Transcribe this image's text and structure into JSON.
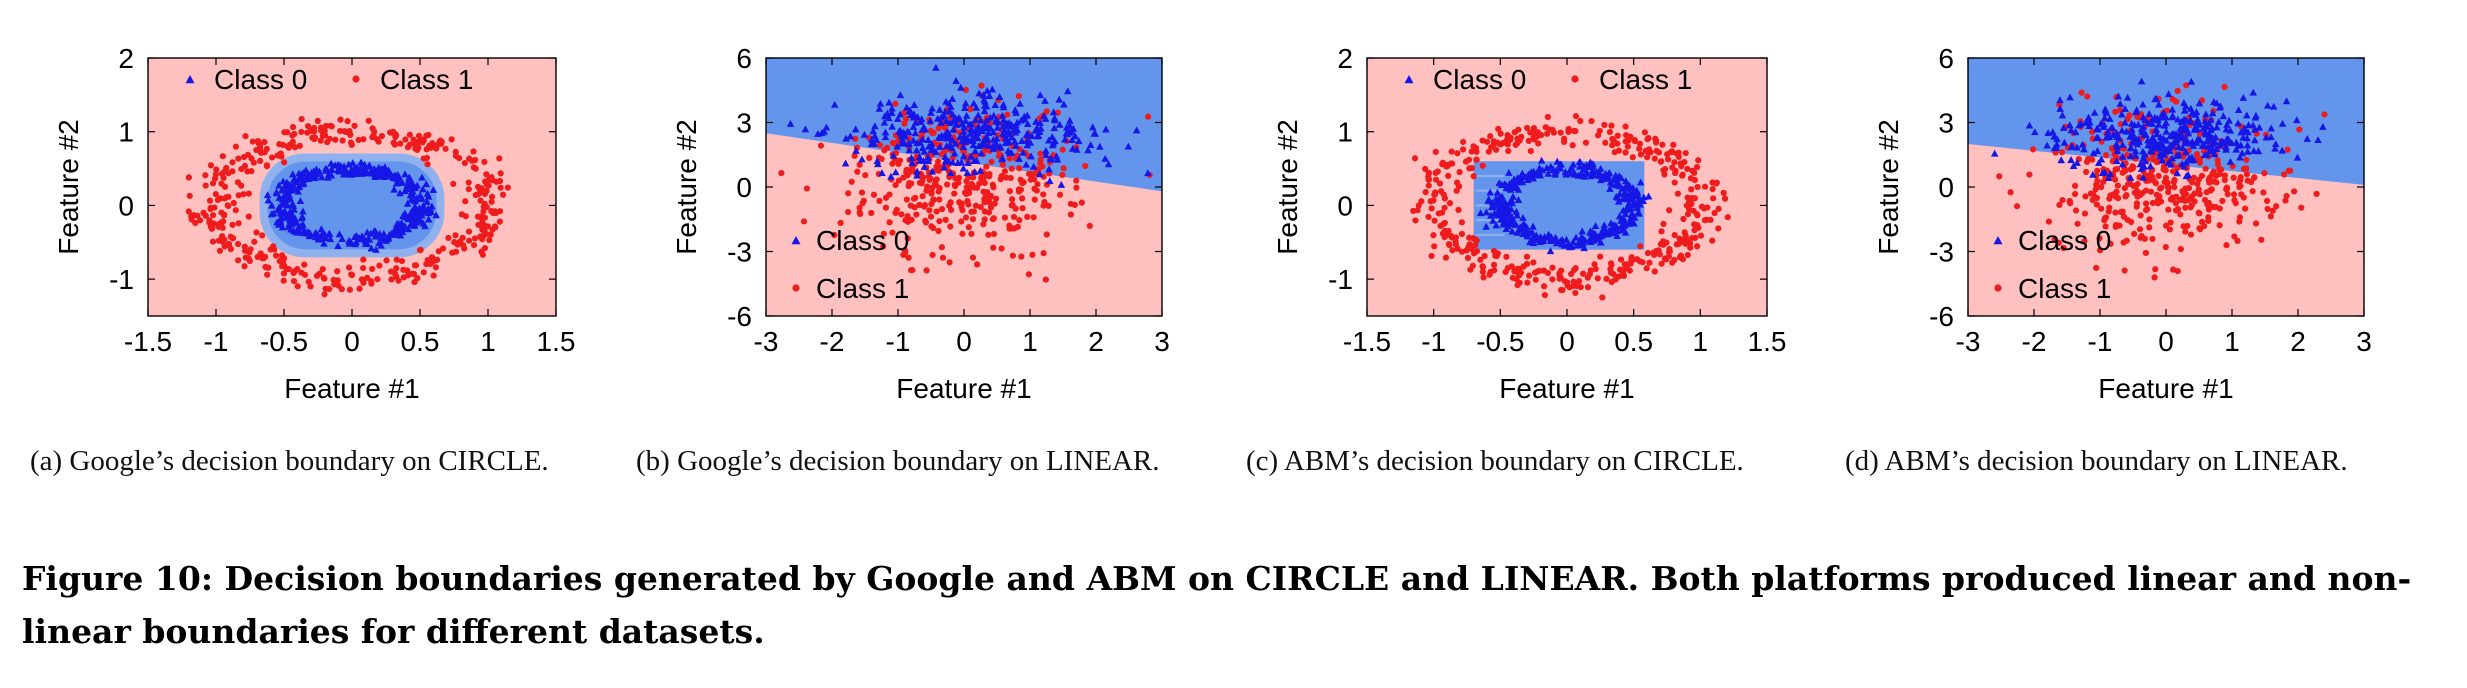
{
  "colors": {
    "class0": "#1616e6",
    "class1": "#ee1c1c",
    "region0": "#6495ed",
    "region1": "#ffc0c0",
    "boundary_soft": "#8fb1ee"
  },
  "chart_data": [
    {
      "type": "scatter",
      "id": "a",
      "dataset": "CIRCLE",
      "title": "",
      "xlabel": "Feature #1",
      "ylabel": "Feature #2",
      "xlim": [
        -1.5,
        1.5
      ],
      "ylim": [
        -1.5,
        2
      ],
      "xticks": [
        "-1.5",
        "-1",
        "-0.5",
        "0",
        "0.5",
        "1",
        "1.5"
      ],
      "yticks": [
        "2",
        "1",
        "0",
        "-1"
      ],
      "legend": {
        "placement": "top",
        "entries": [
          "Class 0",
          "Class 1"
        ]
      },
      "background": "class1",
      "boundary": {
        "shape": "rounded-ellipse",
        "x": [
          -0.65,
          0.65
        ],
        "y": [
          -0.65,
          0.65
        ],
        "class": 0
      },
      "series": [
        {
          "name": "Class 0",
          "marker": "triangle",
          "pattern": "ring",
          "cx": 0,
          "cy": 0,
          "rx": 0.5,
          "ry": 0.5,
          "spread": 0.1,
          "n": 380
        },
        {
          "name": "Class 1",
          "marker": "circle",
          "pattern": "ring",
          "cx": 0,
          "cy": 0,
          "rx": 1.0,
          "ry": 1.0,
          "spread": 0.1,
          "n": 420
        }
      ]
    },
    {
      "type": "scatter",
      "id": "b",
      "dataset": "LINEAR",
      "title": "",
      "xlabel": "Feature #1",
      "ylabel": "Feature #2",
      "xlim": [
        -3,
        3
      ],
      "ylim": [
        -6,
        6
      ],
      "xticks": [
        "-3",
        "-2",
        "-1",
        "0",
        "1",
        "2",
        "3"
      ],
      "yticks": [
        "6",
        "3",
        "0",
        "-3",
        "-6"
      ],
      "legend": {
        "placement": "bottom-left",
        "entries": [
          "Class 0",
          "Class 1"
        ]
      },
      "background": "class1",
      "boundary": {
        "shape": "linear",
        "y_at_xmin": 2.5,
        "y_at_xmax": -0.2,
        "above_class": 0
      },
      "series": [
        {
          "name": "Class 0",
          "marker": "triangle",
          "pattern": "blob",
          "cx": 0.0,
          "cy": 2.4,
          "sx": 0.95,
          "sy": 0.85,
          "n": 360
        },
        {
          "name": "Class 1",
          "marker": "circle",
          "pattern": "blob",
          "cx": -0.1,
          "cy": 0.4,
          "sx": 0.85,
          "sy": 1.7,
          "n": 420
        }
      ]
    },
    {
      "type": "scatter",
      "id": "c",
      "dataset": "CIRCLE",
      "title": "",
      "xlabel": "Feature #1",
      "ylabel": "Feature #2",
      "xlim": [
        -1.5,
        1.5
      ],
      "ylim": [
        -1.5,
        2
      ],
      "xticks": [
        "-1.5",
        "-1",
        "-0.5",
        "0",
        "0.5",
        "1",
        "1.5"
      ],
      "yticks": [
        "2",
        "1",
        "0",
        "-1"
      ],
      "legend": {
        "placement": "top",
        "entries": [
          "Class 0",
          "Class 1"
        ]
      },
      "background": "class1",
      "boundary": {
        "shape": "rectangle",
        "x": [
          -0.7,
          0.58
        ],
        "y": [
          -0.6,
          0.6
        ],
        "class": 0
      },
      "series": [
        {
          "name": "Class 0",
          "marker": "triangle",
          "pattern": "ring",
          "cx": 0,
          "cy": 0,
          "rx": 0.5,
          "ry": 0.5,
          "spread": 0.1,
          "n": 380
        },
        {
          "name": "Class 1",
          "marker": "circle",
          "pattern": "ring",
          "cx": 0,
          "cy": 0,
          "rx": 1.0,
          "ry": 1.0,
          "spread": 0.1,
          "n": 420
        }
      ]
    },
    {
      "type": "scatter",
      "id": "d",
      "dataset": "LINEAR",
      "title": "",
      "xlabel": "Feature #1",
      "ylabel": "Feature #2",
      "xlim": [
        -3,
        3
      ],
      "ylim": [
        -6,
        6
      ],
      "xticks": [
        "-3",
        "-2",
        "-1",
        "0",
        "1",
        "2",
        "3"
      ],
      "yticks": [
        "6",
        "3",
        "0",
        "-3",
        "-6"
      ],
      "legend": {
        "placement": "bottom-left",
        "entries": [
          "Class 0",
          "Class 1"
        ]
      },
      "background": "class1",
      "boundary": {
        "shape": "linear",
        "y_at_xmin": 2.0,
        "y_at_xmax": 0.1,
        "above_class": 0
      },
      "series": [
        {
          "name": "Class 0",
          "marker": "triangle",
          "pattern": "blob",
          "cx": 0.0,
          "cy": 2.4,
          "sx": 0.95,
          "sy": 0.85,
          "n": 360
        },
        {
          "name": "Class 1",
          "marker": "circle",
          "pattern": "blob",
          "cx": -0.1,
          "cy": 0.4,
          "sx": 0.85,
          "sy": 1.7,
          "n": 420
        }
      ]
    }
  ],
  "subcaptions": [
    "(a)  Google’s decision boundary on CIRCLE.",
    "(b)  Google’s decision boundary on LINEAR.",
    "(c)  ABM’s decision boundary on CIRCLE.",
    "(d)  ABM’s decision boundary on LINEAR."
  ],
  "figure_caption": "Figure 10: Decision boundaries generated by Google and ABM on CIRCLE and LINEAR. Both platforms produced linear and non-linear boundaries for different datasets."
}
